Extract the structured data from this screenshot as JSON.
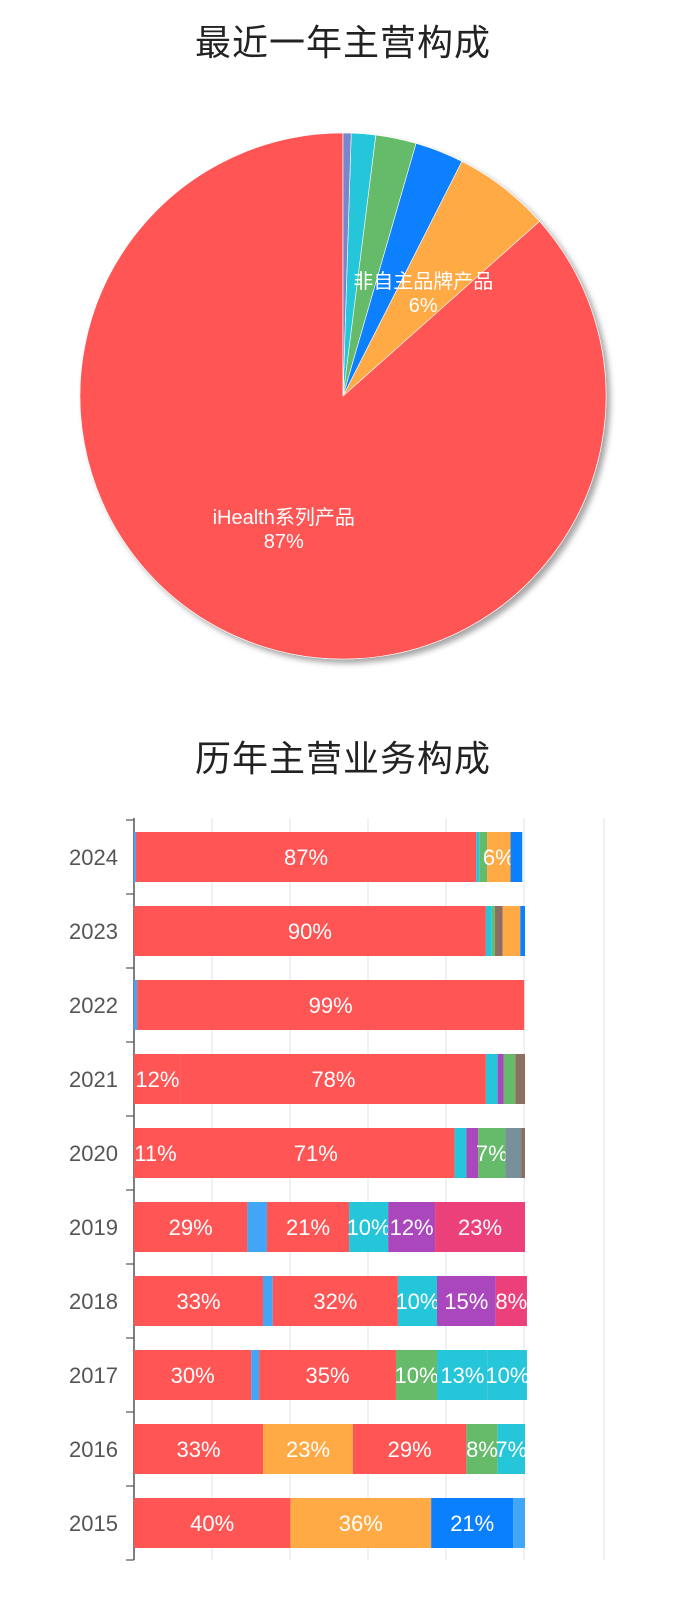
{
  "pie_title": "最近一年主营构成",
  "bar_title": "历年主营业务构成",
  "colors": {
    "red": "#ff5555",
    "orange": "#ffaa44",
    "blue": "#0a80ff",
    "green": "#66bb6a",
    "cyan": "#26c6da",
    "lightblue": "#42a5f5",
    "purple": "#ab47bc",
    "pink": "#ec407a",
    "grey": "#78909c",
    "brown": "#8d6e63",
    "teal": "#26a69a"
  },
  "chart_data": [
    {
      "type": "pie",
      "title": "最近一年主营构成",
      "slices": [
        {
          "name": "iHealth系列产品",
          "value": 87,
          "color": "#ff5555",
          "label": "iHealth系列产品",
          "pct_label": "87%"
        },
        {
          "name": "非自主品牌产品",
          "value": 6,
          "color": "#ffaa44",
          "label": "非自主品牌产品",
          "pct_label": "6%"
        },
        {
          "name": "",
          "value": 3,
          "color": "#0a80ff"
        },
        {
          "name": "",
          "value": 2.5,
          "color": "#66bb6a"
        },
        {
          "name": "",
          "value": 1.5,
          "color": "#26c6da"
        },
        {
          "name": "",
          "value": 0.5,
          "color": "#7986cb"
        }
      ]
    },
    {
      "type": "bar",
      "orientation": "horizontal",
      "stacked": "percent",
      "title": "历年主营业务构成",
      "categories": [
        "2024",
        "2023",
        "2022",
        "2021",
        "2020",
        "2019",
        "2018",
        "2017",
        "2016",
        "2015"
      ],
      "xlim": [
        0,
        100
      ],
      "rows": [
        {
          "year": "2024",
          "segments": [
            {
              "value": 0.5,
              "color": "#42a5f5",
              "label": ""
            },
            {
              "value": 87,
              "color": "#ff5555",
              "label": "87%"
            },
            {
              "value": 0.8,
              "color": "#26c6da",
              "label": ""
            },
            {
              "value": 2,
              "color": "#66bb6a",
              "label": ""
            },
            {
              "value": 6,
              "color": "#ffaa44",
              "label": "6%"
            },
            {
              "value": 3,
              "color": "#0a80ff",
              "label": ""
            }
          ]
        },
        {
          "year": "2023",
          "segments": [
            {
              "value": 90,
              "color": "#ff5555",
              "label": "90%"
            },
            {
              "value": 1.5,
              "color": "#26c6da",
              "label": ""
            },
            {
              "value": 0.8,
              "color": "#66bb6a",
              "label": ""
            },
            {
              "value": 2,
              "color": "#8d6e63",
              "label": ""
            },
            {
              "value": 4.5,
              "color": "#ffaa44",
              "label": ""
            },
            {
              "value": 1.2,
              "color": "#0a80ff",
              "label": ""
            }
          ]
        },
        {
          "year": "2022",
          "segments": [
            {
              "value": 0.8,
              "color": "#42a5f5",
              "label": ""
            },
            {
              "value": 99,
              "color": "#ff5555",
              "label": "99%"
            }
          ]
        },
        {
          "year": "2021",
          "segments": [
            {
              "value": 12,
              "color": "#ff5555",
              "label": "12%"
            },
            {
              "value": 78,
              "color": "#ff5555",
              "label": "78%"
            },
            {
              "value": 3,
              "color": "#26c6da",
              "label": ""
            },
            {
              "value": 1.5,
              "color": "#ab47bc",
              "label": ""
            },
            {
              "value": 3,
              "color": "#66bb6a",
              "label": ""
            },
            {
              "value": 2.5,
              "color": "#8d6e63",
              "label": ""
            }
          ]
        },
        {
          "year": "2020",
          "segments": [
            {
              "value": 11,
              "color": "#ff5555",
              "label": "11%"
            },
            {
              "value": 71,
              "color": "#ff5555",
              "label": "71%"
            },
            {
              "value": 3,
              "color": "#26c6da",
              "label": ""
            },
            {
              "value": 3,
              "color": "#ab47bc",
              "label": ""
            },
            {
              "value": 7,
              "color": "#66bb6a",
              "label": "7%"
            },
            {
              "value": 4,
              "color": "#78909c",
              "label": ""
            },
            {
              "value": 1,
              "color": "#8d6e63",
              "label": ""
            }
          ]
        },
        {
          "year": "2019",
          "segments": [
            {
              "value": 29,
              "color": "#ff5555",
              "label": "29%"
            },
            {
              "value": 5,
              "color": "#42a5f5",
              "label": ""
            },
            {
              "value": 21,
              "color": "#ff5555",
              "label": "21%"
            },
            {
              "value": 10,
              "color": "#26c6da",
              "label": "10%"
            },
            {
              "value": 12,
              "color": "#ab47bc",
              "label": "12%"
            },
            {
              "value": 23,
              "color": "#ec407a",
              "label": "23%"
            }
          ]
        },
        {
          "year": "2018",
          "segments": [
            {
              "value": 33,
              "color": "#ff5555",
              "label": "33%"
            },
            {
              "value": 2.5,
              "color": "#42a5f5",
              "label": ""
            },
            {
              "value": 32,
              "color": "#ff5555",
              "label": "32%"
            },
            {
              "value": 10,
              "color": "#26c6da",
              "label": "10%"
            },
            {
              "value": 15,
              "color": "#ab47bc",
              "label": "15%"
            },
            {
              "value": 8,
              "color": "#ec407a",
              "label": "8%"
            }
          ]
        },
        {
          "year": "2017",
          "segments": [
            {
              "value": 30,
              "color": "#ff5555",
              "label": "30%"
            },
            {
              "value": 2,
              "color": "#42a5f5",
              "label": ""
            },
            {
              "value": 35,
              "color": "#ff5555",
              "label": "35%"
            },
            {
              "value": 10.5,
              "color": "#66bb6a",
              "label": "10%"
            },
            {
              "value": 13,
              "color": "#26c6da",
              "label": "13%"
            },
            {
              "value": 10,
              "color": "#26c6da",
              "label": "10%"
            }
          ]
        },
        {
          "year": "2016",
          "segments": [
            {
              "value": 33,
              "color": "#ff5555",
              "label": "33%"
            },
            {
              "value": 23,
              "color": "#ffaa44",
              "label": "23%"
            },
            {
              "value": 29,
              "color": "#ff5555",
              "label": "29%"
            },
            {
              "value": 8,
              "color": "#66bb6a",
              "label": "8%"
            },
            {
              "value": 7,
              "color": "#26c6da",
              "label": "7%"
            }
          ]
        },
        {
          "year": "2015",
          "segments": [
            {
              "value": 40,
              "color": "#ff5555",
              "label": "40%"
            },
            {
              "value": 36,
              "color": "#ffaa44",
              "label": "36%"
            },
            {
              "value": 21,
              "color": "#0a80ff",
              "label": "21%"
            },
            {
              "value": 3,
              "color": "#42a5f5",
              "label": ""
            }
          ]
        }
      ]
    }
  ]
}
